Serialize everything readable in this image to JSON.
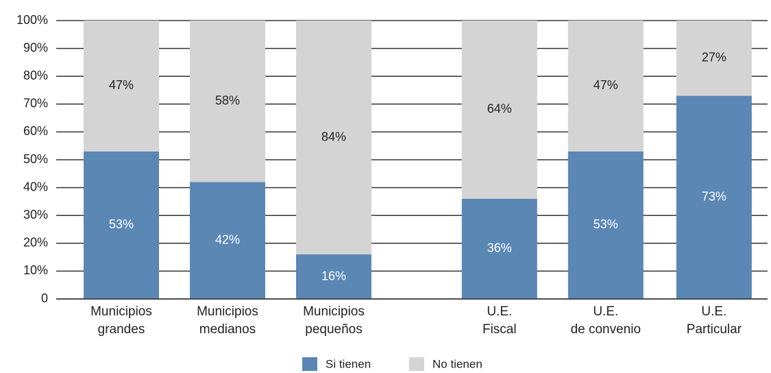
{
  "chart_data": {
    "type": "stacked_bar",
    "categories": [
      "Municipios\ngrandes",
      "Municipios\nmedianos",
      "Municipios\npequeños",
      "U.E.\nFiscal",
      "U.E.\nde convenio",
      "U.E.\nParticular"
    ],
    "series": [
      {
        "name": "Si tienen",
        "color": "#5b87b5",
        "label_color": "#ffffff",
        "values": [
          53,
          42,
          16,
          36,
          53,
          73
        ],
        "value_labels": [
          "53%",
          "42%",
          "16%",
          "36%",
          "53%",
          "73%"
        ]
      },
      {
        "name": "No tienen",
        "color": "#d4d4d4",
        "label_color": "#222222",
        "values": [
          47,
          58,
          84,
          64,
          47,
          27
        ],
        "value_labels": [
          "47%",
          "58%",
          "84%",
          "64%",
          "47%",
          "27%"
        ]
      }
    ],
    "ylim": [
      0,
      100
    ],
    "yticks": [
      0,
      {
        "value": 10,
        "label": "10%"
      },
      {
        "value": 20,
        "label": "20%"
      },
      {
        "value": 30,
        "label": "30%"
      },
      {
        "value": 40,
        "label": "40%"
      },
      {
        "value": 50,
        "label": "50%"
      },
      {
        "value": 60,
        "label": "60%"
      },
      {
        "value": 70,
        "label": "70%"
      },
      {
        "value": 80,
        "label": "80%"
      },
      {
        "value": 90,
        "label": "90%"
      },
      {
        "value": 100,
        "label": "100%"
      }
    ],
    "grid": true,
    "legend": "bottom"
  }
}
